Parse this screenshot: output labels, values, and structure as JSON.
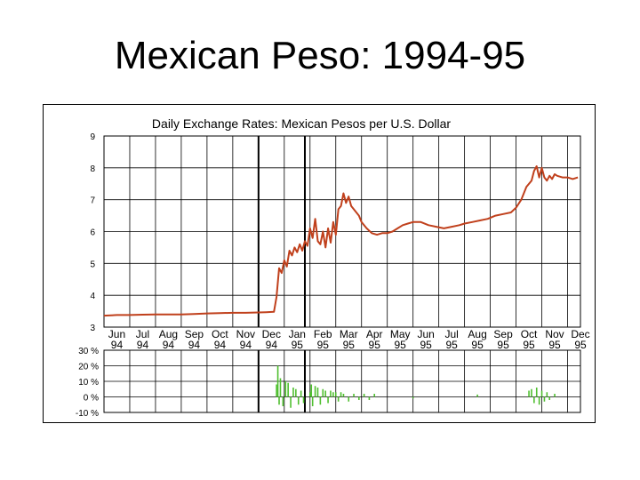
{
  "slide": {
    "title": "Mexican Peso: 1994-95"
  },
  "chart_data": {
    "type": "line",
    "title": "Daily Exchange Rates: Mexican Pesos per U.S. Dollar",
    "xlabel": "",
    "ylabel": "",
    "ylim": [
      3,
      9
    ],
    "y_ticks": [
      "3",
      "4",
      "5",
      "6",
      "7",
      "8",
      "9"
    ],
    "x_tick_months": [
      "Jun",
      "Jul",
      "Aug",
      "Sep",
      "Oct",
      "Nov",
      "Dec",
      "Jan",
      "Feb",
      "Mar",
      "Apr",
      "May",
      "Jun",
      "Jul",
      "Aug",
      "Sep",
      "Oct",
      "Nov",
      "Dec"
    ],
    "x_tick_years": [
      "94",
      "94",
      "94",
      "94",
      "94",
      "94",
      "94",
      "95",
      "95",
      "95",
      "95",
      "95",
      "95",
      "95",
      "95",
      "95",
      "95",
      "95",
      "95"
    ],
    "series": [
      {
        "color": "#c0401c",
        "x": [
          0.0,
          0.5,
          1.0,
          1.5,
          2.0,
          2.5,
          3.0,
          3.5,
          4.0,
          4.5,
          5.0,
          5.5,
          6.0,
          6.3,
          6.6,
          6.7,
          6.8,
          6.9,
          7.0,
          7.1,
          7.2,
          7.3,
          7.4,
          7.5,
          7.6,
          7.7,
          7.8,
          7.9,
          8.0,
          8.1,
          8.2,
          8.3,
          8.4,
          8.5,
          8.6,
          8.7,
          8.8,
          8.9,
          9.0,
          9.1,
          9.2,
          9.3,
          9.4,
          9.5,
          9.6,
          9.7,
          9.8,
          9.9,
          10.0,
          10.2,
          10.4,
          10.6,
          10.8,
          11.0,
          11.2,
          11.4,
          11.6,
          11.8,
          12.0,
          12.3,
          12.6,
          12.9,
          13.2,
          13.5,
          13.8,
          14.0,
          14.3,
          14.6,
          14.9,
          15.2,
          15.5,
          15.8,
          16.0,
          16.2,
          16.4,
          16.6,
          16.7,
          16.8,
          16.9,
          17.0,
          17.1,
          17.2,
          17.3,
          17.4,
          17.5,
          17.6,
          17.8,
          18.0,
          18.2,
          18.4
        ],
        "y": [
          3.36,
          3.38,
          3.38,
          3.39,
          3.4,
          3.4,
          3.4,
          3.41,
          3.43,
          3.44,
          3.45,
          3.45,
          3.46,
          3.47,
          3.48,
          3.95,
          4.85,
          4.7,
          5.1,
          4.9,
          5.4,
          5.25,
          5.5,
          5.35,
          5.6,
          5.4,
          5.7,
          5.55,
          6.1,
          5.8,
          6.4,
          5.7,
          5.6,
          6.0,
          5.5,
          6.1,
          5.65,
          6.3,
          5.9,
          6.7,
          6.8,
          7.2,
          6.9,
          7.1,
          6.8,
          6.7,
          6.6,
          6.5,
          6.3,
          6.1,
          5.95,
          5.9,
          5.95,
          5.95,
          6.0,
          6.1,
          6.2,
          6.25,
          6.3,
          6.3,
          6.2,
          6.15,
          6.1,
          6.15,
          6.2,
          6.25,
          6.3,
          6.35,
          6.4,
          6.5,
          6.55,
          6.6,
          6.75,
          7.0,
          7.4,
          7.6,
          7.9,
          8.05,
          7.7,
          8.0,
          7.7,
          7.6,
          7.75,
          7.65,
          7.8,
          7.75,
          7.7,
          7.7,
          7.65,
          7.7
        ]
      }
    ],
    "subplot": {
      "type": "bar",
      "ylim": [
        -10,
        30
      ],
      "y_ticks": [
        "30 %",
        "20 %",
        "10 %",
        "0 %",
        "-10 %"
      ],
      "color": "#4fbf2f",
      "x": [
        6.7,
        6.75,
        6.8,
        6.85,
        6.95,
        7.05,
        7.15,
        7.25,
        7.35,
        7.45,
        7.55,
        7.65,
        7.75,
        8.0,
        8.05,
        8.1,
        8.2,
        8.3,
        8.4,
        8.5,
        8.6,
        8.7,
        8.8,
        8.9,
        9.0,
        9.1,
        9.2,
        9.3,
        9.5,
        9.7,
        9.9,
        10.1,
        10.3,
        10.5,
        12.0,
        14.5,
        16.5,
        16.6,
        16.7,
        16.8,
        16.9,
        17.0,
        17.1,
        17.2,
        17.3,
        17.5
      ],
      "values": [
        8.0,
        20.0,
        -5.0,
        12.0,
        -6.0,
        10.0,
        9.0,
        -7.0,
        6.0,
        5.0,
        -5.0,
        4.0,
        -4.0,
        3.0,
        8.0,
        -6.0,
        7.0,
        6.0,
        -5.0,
        5.0,
        4.0,
        -4.0,
        4.0,
        3.0,
        3.0,
        -3.0,
        3.0,
        2.0,
        -3.0,
        2.0,
        -2.0,
        2.0,
        -2.0,
        2.0,
        -1.0,
        1.5,
        4.0,
        5.0,
        -4.0,
        6.0,
        -5.0,
        4.0,
        -3.0,
        3.0,
        -2.0,
        2.0
      ]
    }
  }
}
